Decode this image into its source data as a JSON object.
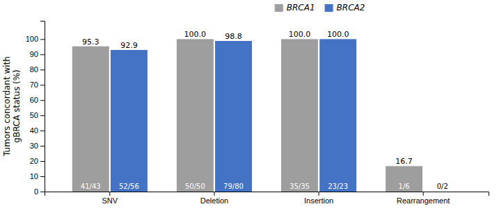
{
  "chart_data": {
    "type": "bar",
    "y_label": "Tumors concordant with\ngBRCA status (%)",
    "categories": [
      "SNV",
      "Deletion",
      "Insertion",
      "Rearrangement"
    ],
    "series": [
      {
        "name": "BRCA1",
        "color": "#9E9E9E",
        "values": [
          95.3,
          100.0,
          100.0,
          16.7
        ],
        "value_labels": [
          "95.3",
          "100.0",
          "100.0",
          "16.7"
        ],
        "annotations": [
          "41/43",
          "50/50",
          "35/35",
          "1/6"
        ]
      },
      {
        "name": "BRCA2",
        "color": "#4472C4",
        "values": [
          92.9,
          98.8,
          100.0,
          null
        ],
        "value_labels": [
          "92.9",
          "98.8",
          "100.0",
          null
        ],
        "annotations": [
          "52/56",
          "79/80",
          "23/23",
          "0/2"
        ]
      }
    ],
    "ylim": [
      0,
      112
    ],
    "yticks": [
      0,
      10,
      20,
      30,
      40,
      50,
      60,
      70,
      80,
      90,
      100
    ],
    "grid": false,
    "legend": "top",
    "data_labels": true
  }
}
